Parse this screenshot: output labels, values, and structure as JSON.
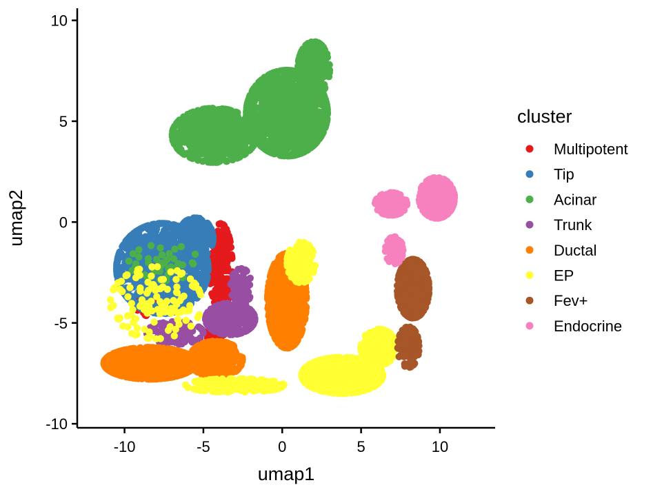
{
  "chart_data": {
    "type": "scatter",
    "title": "",
    "xlabel": "umap1",
    "ylabel": "umap2",
    "xlim": [
      -13,
      13.5
    ],
    "ylim": [
      -10.2,
      10.6
    ],
    "xticks": [
      -10,
      -5,
      0,
      5,
      10
    ],
    "yticks": [
      -10,
      -5,
      0,
      5,
      10
    ],
    "xtick_labels": [
      "-10",
      "-5",
      "0",
      "5",
      "10"
    ],
    "ytick_labels": [
      "-10",
      "-5",
      "0",
      "5",
      "10"
    ],
    "grid": false,
    "legend": {
      "title": "cluster",
      "placement": "right"
    },
    "series": [
      {
        "name": "Multipotent",
        "color": "#E41A1C",
        "clusters": [
          {
            "center": [
              -3.9,
              -2.2
            ],
            "spread": [
              0.65,
              1.9
            ],
            "n": 260
          },
          {
            "center": [
              -8.3,
              -4.1
            ],
            "spread": [
              0.9,
              0.5
            ],
            "n": 50
          },
          {
            "center": [
              -4.2,
              -5.6
            ],
            "spread": [
              0.5,
              0.4
            ],
            "n": 25
          }
        ]
      },
      {
        "name": "Tip",
        "color": "#377EB8",
        "clusters": [
          {
            "center": [
              -7.6,
              -2.3
            ],
            "spread": [
              2.6,
              2.0
            ],
            "n": 900
          },
          {
            "center": [
              -5.5,
              -0.8
            ],
            "spread": [
              1.0,
              0.9
            ],
            "n": 200
          }
        ]
      },
      {
        "name": "Acinar",
        "color": "#4DAF4A",
        "clusters": [
          {
            "center": [
              -4.3,
              4.3
            ],
            "spread": [
              2.4,
              1.2
            ],
            "n": 650
          },
          {
            "center": [
              0.3,
              5.4
            ],
            "spread": [
              2.3,
              1.9
            ],
            "n": 1100
          },
          {
            "center": [
              2.0,
              7.6
            ],
            "spread": [
              0.9,
              1.2
            ],
            "n": 300
          },
          {
            "center": [
              -7.5,
              -2.0
            ],
            "spread": [
              2.0,
              0.8
            ],
            "n": 45
          }
        ]
      },
      {
        "name": "Trunk",
        "color": "#984EA3",
        "clusters": [
          {
            "center": [
              -3.3,
              -4.8
            ],
            "spread": [
              1.4,
              0.7
            ],
            "n": 320
          },
          {
            "center": [
              -6.8,
              -5.5
            ],
            "spread": [
              1.6,
              0.5
            ],
            "n": 140
          },
          {
            "center": [
              -2.6,
              -3.2
            ],
            "spread": [
              0.6,
              0.8
            ],
            "n": 90
          }
        ]
      },
      {
        "name": "Ductal",
        "color": "#FF7F00",
        "clusters": [
          {
            "center": [
              -8.4,
              -7.0
            ],
            "spread": [
              2.6,
              0.7
            ],
            "n": 900
          },
          {
            "center": [
              0.3,
              -3.9
            ],
            "spread": [
              1.1,
              2.1
            ],
            "n": 650
          },
          {
            "center": [
              -4.2,
              -6.8
            ],
            "spread": [
              1.5,
              0.8
            ],
            "n": 300
          }
        ]
      },
      {
        "name": "EP",
        "color": "#FFFF33",
        "clusters": [
          {
            "center": [
              3.8,
              -7.6
            ],
            "spread": [
              2.3,
              0.8
            ],
            "n": 700
          },
          {
            "center": [
              6.1,
              -6.2
            ],
            "spread": [
              1.0,
              0.8
            ],
            "n": 220
          },
          {
            "center": [
              -3.0,
              -8.1
            ],
            "spread": [
              2.8,
              0.3
            ],
            "n": 200
          },
          {
            "center": [
              1.2,
              -2.0
            ],
            "spread": [
              0.8,
              0.9
            ],
            "n": 110
          },
          {
            "center": [
              -8.0,
              -4.0
            ],
            "spread": [
              2.6,
              1.6
            ],
            "n": 130
          }
        ]
      },
      {
        "name": "Fev+",
        "color": "#A65628",
        "clusters": [
          {
            "center": [
              8.3,
              -3.3
            ],
            "spread": [
              0.9,
              1.3
            ],
            "n": 400
          },
          {
            "center": [
              8.0,
              -6.2
            ],
            "spread": [
              0.6,
              0.9
            ],
            "n": 140
          }
        ]
      },
      {
        "name": "Endocrine",
        "color": "#F781BF",
        "clusters": [
          {
            "center": [
              9.8,
              1.2
            ],
            "spread": [
              1.0,
              0.9
            ],
            "n": 380
          },
          {
            "center": [
              6.9,
              0.9
            ],
            "spread": [
              0.9,
              0.5
            ],
            "n": 160
          },
          {
            "center": [
              7.1,
              -1.4
            ],
            "spread": [
              0.5,
              0.6
            ],
            "n": 80
          }
        ]
      }
    ]
  }
}
